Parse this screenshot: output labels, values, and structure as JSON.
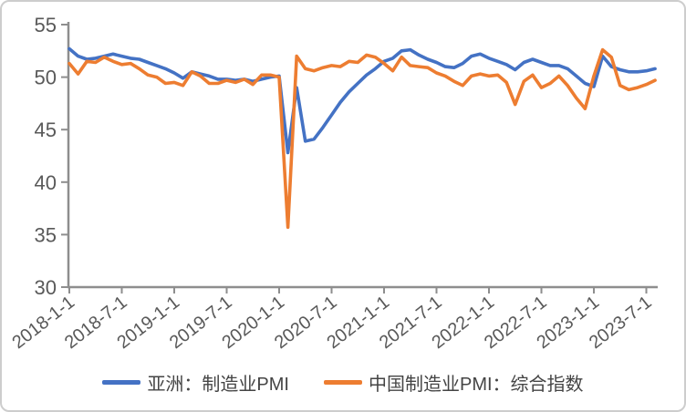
{
  "chart_data": {
    "type": "line",
    "title": "",
    "xlabel": "",
    "ylabel": "",
    "grid": false,
    "legend_position": "bottom-center",
    "y_range": [
      30,
      55
    ],
    "y_ticks": [
      30,
      35,
      40,
      45,
      50,
      55
    ],
    "x_tick_labels": [
      "2018-1-1",
      "2018-7-1",
      "2019-1-1",
      "2019-7-1",
      "2020-1-1",
      "2020-7-1",
      "2021-1-1",
      "2021-7-1",
      "2022-1-1",
      "2022-7-1",
      "2023-1-1",
      "2023-7-1"
    ],
    "x_months": [
      "2018-1",
      "2018-2",
      "2018-3",
      "2018-4",
      "2018-5",
      "2018-6",
      "2018-7",
      "2018-8",
      "2018-9",
      "2018-10",
      "2018-11",
      "2018-12",
      "2019-1",
      "2019-2",
      "2019-3",
      "2019-4",
      "2019-5",
      "2019-6",
      "2019-7",
      "2019-8",
      "2019-9",
      "2019-10",
      "2019-11",
      "2019-12",
      "2020-1",
      "2020-2",
      "2020-3",
      "2020-4",
      "2020-5",
      "2020-6",
      "2020-7",
      "2020-8",
      "2020-9",
      "2020-10",
      "2020-11",
      "2020-12",
      "2021-1",
      "2021-2",
      "2021-3",
      "2021-4",
      "2021-5",
      "2021-6",
      "2021-7",
      "2021-8",
      "2021-9",
      "2021-10",
      "2021-11",
      "2021-12",
      "2022-1",
      "2022-2",
      "2022-3",
      "2022-4",
      "2022-5",
      "2022-6",
      "2022-7",
      "2022-8",
      "2022-9",
      "2022-10",
      "2022-11",
      "2022-12",
      "2023-1",
      "2023-2",
      "2023-3",
      "2023-4",
      "2023-5",
      "2023-6",
      "2023-7",
      "2023-8"
    ],
    "series": [
      {
        "name": "亚洲：制造业PMI",
        "color": "#4472C4",
        "values": [
          52.7,
          52.0,
          51.7,
          51.8,
          52.0,
          52.2,
          52.0,
          51.8,
          51.7,
          51.4,
          51.1,
          50.8,
          50.4,
          49.9,
          50.5,
          50.3,
          50.1,
          49.8,
          49.8,
          49.7,
          49.8,
          49.6,
          49.8,
          50.0,
          50.1,
          42.8,
          49.0,
          43.9,
          44.1,
          45.2,
          46.4,
          47.6,
          48.6,
          49.4,
          50.2,
          50.8,
          51.5,
          51.8,
          52.5,
          52.6,
          52.1,
          51.7,
          51.4,
          51.0,
          50.9,
          51.3,
          52.0,
          52.2,
          51.8,
          51.5,
          51.2,
          50.7,
          51.4,
          51.7,
          51.4,
          51.1,
          51.1,
          50.8,
          50.1,
          49.4,
          49.1,
          52.0,
          51.0,
          50.7,
          50.5,
          50.5,
          50.6,
          50.8
        ]
      },
      {
        "name": "中国制造业PMI：综合指数",
        "color": "#ED7D31",
        "values": [
          51.3,
          50.3,
          51.5,
          51.4,
          51.9,
          51.5,
          51.2,
          51.3,
          50.8,
          50.2,
          50.0,
          49.4,
          49.5,
          49.2,
          50.5,
          50.1,
          49.4,
          49.4,
          49.7,
          49.5,
          49.8,
          49.3,
          50.2,
          50.2,
          50.0,
          35.7,
          52.0,
          50.8,
          50.6,
          50.9,
          51.1,
          51.0,
          51.5,
          51.4,
          52.1,
          51.9,
          51.3,
          50.6,
          51.9,
          51.1,
          51.0,
          50.9,
          50.4,
          50.1,
          49.6,
          49.2,
          50.1,
          50.3,
          50.1,
          50.2,
          49.5,
          47.4,
          49.6,
          50.2,
          49.0,
          49.4,
          50.1,
          49.2,
          48.0,
          47.0,
          50.1,
          52.6,
          51.9,
          49.2,
          48.8,
          49.0,
          49.3,
          49.7
        ]
      }
    ],
    "axis_color": "#8e8e8e",
    "tick_label_color": "#595959"
  }
}
